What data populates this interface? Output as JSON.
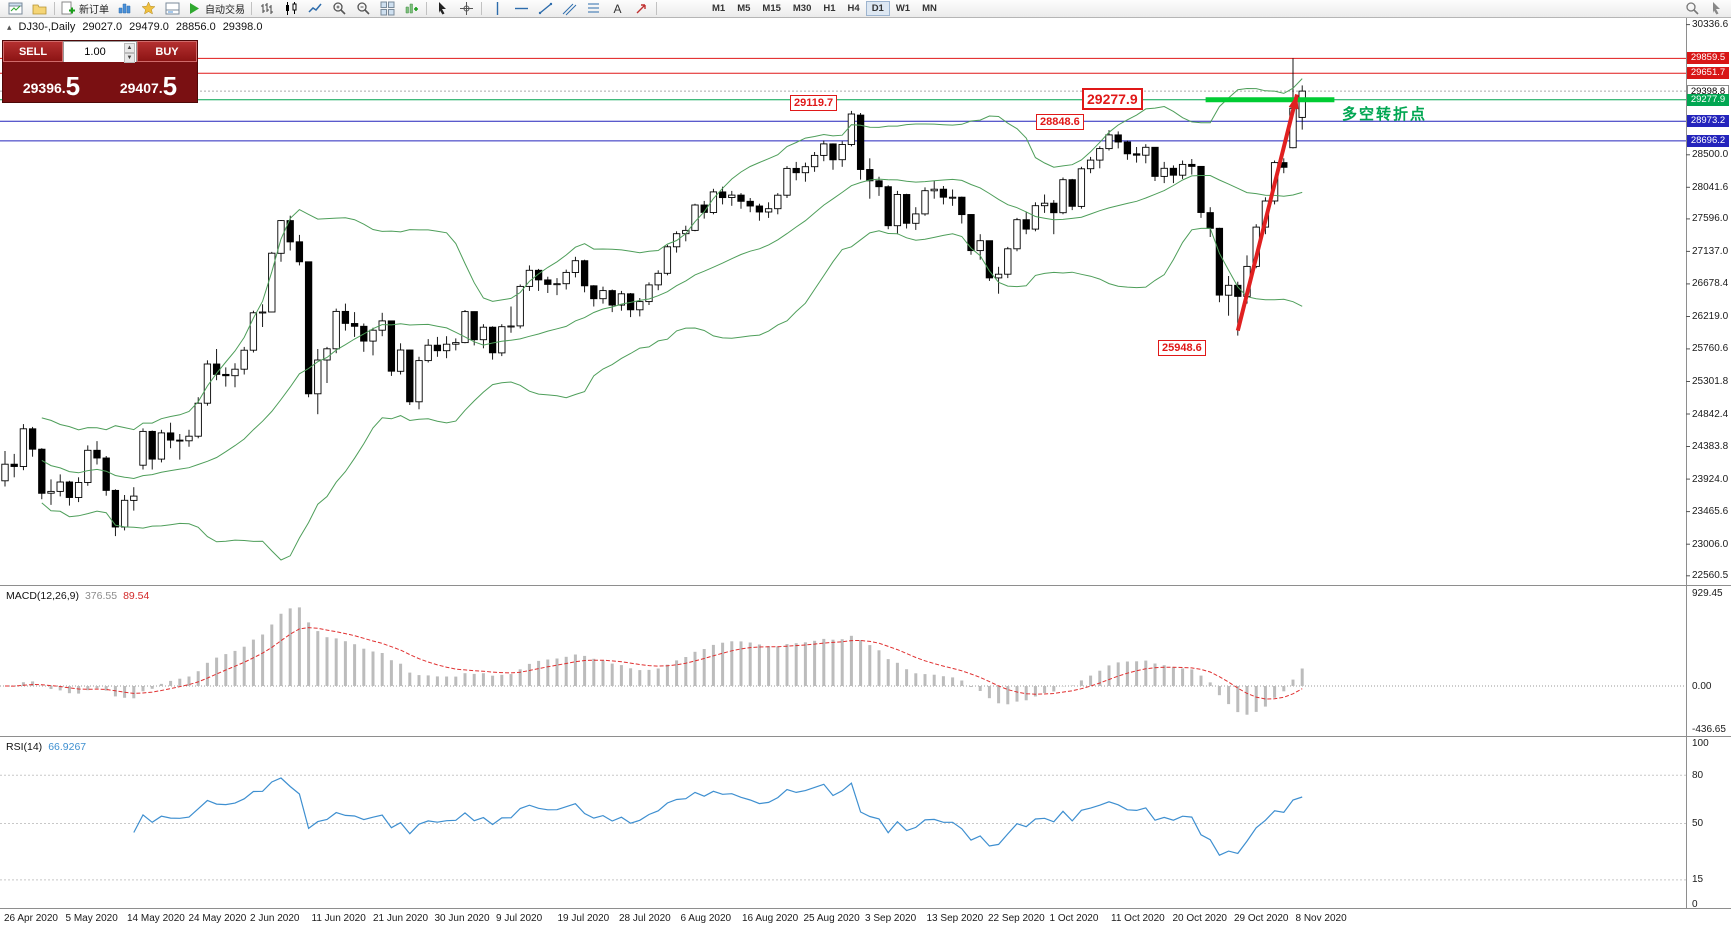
{
  "toolbar": {
    "new_order": "新订单",
    "autotrading": "自动交易",
    "timeframes": [
      "M1",
      "M5",
      "M15",
      "M30",
      "H1",
      "H4",
      "D1",
      "W1",
      "MN"
    ],
    "active_timeframe": "D1"
  },
  "icons": {
    "window-icon": "svg",
    "profiles-icon": "folder",
    "new-order-icon": "page-plus",
    "marketwatch-icon": "bars",
    "navigator-icon": "star",
    "terminal-icon": "panel",
    "autotrading-icon": "play-triangle",
    "bars-chart-icon": "ohlc-bars",
    "candles-chart-icon": "candles",
    "line-chart-icon": "zigzag",
    "zoom-in-icon": "magnifier-plus",
    "zoom-out-icon": "magnifier-minus",
    "tile-windows-icon": "grid",
    "indicators-icon": "chart-plus",
    "cursor-icon": "pointer-arrow",
    "crosshair-icon": "cross-circle",
    "vline-icon": "vertical-line",
    "hline-icon": "horizontal-line",
    "trendline-icon": "diagonal-line",
    "channel-icon": "parallel-lines",
    "fibonacci-icon": "stacked-lines",
    "text-icon": "A",
    "arrows-icon": "red-arrow",
    "window-zoom-icon": "magnifier",
    "window-pointer-icon": "pointer"
  },
  "chart_header": {
    "symbol": "DJ30-,Daily",
    "open": "29027.0",
    "high": "29479.0",
    "low": "28856.0",
    "close": "29398.0"
  },
  "trade_panel": {
    "sell_label": "SELL",
    "buy_label": "BUY",
    "volume": "1.00",
    "sell_price_int": "29396.",
    "sell_price_frac": "5",
    "buy_price_int": "29407.",
    "buy_price_frac": "5"
  },
  "annotations": {
    "high1": "29119.7",
    "high2": "28848.6",
    "level_label": "29277.9",
    "low_label": "25948.6",
    "note": "多空转折点"
  },
  "axis_badges": [
    {
      "value": 29859.5,
      "text": "29859.5",
      "bg": "#d81616"
    },
    {
      "value": 29651.7,
      "text": "29651.7",
      "bg": "#d81616"
    },
    {
      "value": 29398.8,
      "text": "29398.8",
      "plain": true
    },
    {
      "value": 29277.9,
      "text": "29277.9",
      "bg": "#00a651"
    },
    {
      "value": 28973.2,
      "text": "28973.2",
      "bg": "#2424bc"
    },
    {
      "value": 28696.2,
      "text": "28696.2",
      "bg": "#2424bc"
    }
  ],
  "price_ticks": [
    "30336.6",
    "28500.0",
    "28041.6",
    "27596.0",
    "27137.0",
    "26678.4",
    "26219.0",
    "25760.6",
    "25301.8",
    "24842.4",
    "24383.8",
    "23924.0",
    "23465.6",
    "23006.0",
    "22560.5"
  ],
  "macd_panel": {
    "name": "MACD(12,26,9)",
    "value": "376.55",
    "signal": "89.54",
    "axis": [
      "929.45",
      "0.00",
      "-436.65"
    ]
  },
  "rsi_panel": {
    "name": "RSI(14)",
    "value": "66.9267",
    "axis": [
      "100",
      "80",
      "50",
      "15",
      "0"
    ],
    "levels": [
      80,
      50,
      15
    ]
  },
  "time_axis": [
    "26 Apr 2020",
    "5 May 2020",
    "14 May 2020",
    "24 May 2020",
    "2 Jun 2020",
    "11 Jun 2020",
    "21 Jun 2020",
    "30 Jun 2020",
    "9 Jul 2020",
    "19 Jul 2020",
    "28 Jul 2020",
    "6 Aug 2020",
    "16 Aug 2020",
    "25 Aug 2020",
    "3 Sep 2020",
    "13 Sep 2020",
    "22 Sep 2020",
    "1 Oct 2020",
    "11 Oct 2020",
    "20 Oct 2020",
    "29 Oct 2020",
    "8 Nov 2020"
  ],
  "colors": {
    "hline_red": "#e01818",
    "hline_blue": "#2424bc",
    "hline_green": "#00a651",
    "segment_green": "#00cc33",
    "arrow_red": "#e02020",
    "bollinger": "#4e9e5a",
    "candle_up": "#ffffff",
    "candle_down": "#000000",
    "macd_bar": "#bcbcbc",
    "macd_signal": "#e03030",
    "rsi_line": "#3e8fd0",
    "bid_line": "#aaaaaa"
  },
  "chart_data": {
    "type": "candlestick",
    "symbol": "DJ30",
    "timeframe": "Daily",
    "y_range": [
      22430,
      30430
    ],
    "macd_range": [
      -500,
      980
    ],
    "hlines": [
      {
        "value": 29859.5,
        "color": "#e01818",
        "width": 1
      },
      {
        "value": 29651.7,
        "color": "#e01818",
        "width": 1
      },
      {
        "value": 29277.9,
        "color": "#00a651",
        "width": 1
      },
      {
        "value": 28973.2,
        "color": "#2424bc",
        "width": 1
      },
      {
        "value": 28696.2,
        "color": "#2424bc",
        "width": 1
      }
    ],
    "bid_line": 29398.8,
    "thick_segment": {
      "value": 29277.9,
      "from_index": 130.5,
      "to_index": 144.5,
      "color": "#00cc33"
    },
    "trend_arrow": {
      "from_index": 134,
      "from_value": 26020,
      "to_index": 140,
      "to_value": 29350,
      "color": "#e02020"
    },
    "indicators": {
      "bollinger": {
        "period": 20,
        "deviation": 2
      },
      "macd": {
        "fast": 12,
        "slow": 26,
        "signal": 9
      },
      "rsi": {
        "period": 14
      }
    },
    "candles": [
      [
        23900,
        24320,
        23820,
        24134
      ],
      [
        24134,
        24280,
        23950,
        24102
      ],
      [
        24102,
        24700,
        24050,
        24634
      ],
      [
        24634,
        24660,
        24240,
        24346
      ],
      [
        24346,
        24360,
        23640,
        23724
      ],
      [
        23724,
        23920,
        23560,
        23750
      ],
      [
        23750,
        23990,
        23680,
        23883
      ],
      [
        23883,
        23900,
        23550,
        23665
      ],
      [
        23665,
        23950,
        23600,
        23876
      ],
      [
        23876,
        24400,
        23830,
        24331
      ],
      [
        24331,
        24460,
        24130,
        24222
      ],
      [
        24222,
        24250,
        23690,
        23765
      ],
      [
        23765,
        23780,
        23120,
        23248
      ],
      [
        23248,
        23700,
        23200,
        23625
      ],
      [
        23625,
        23810,
        23480,
        23685
      ],
      [
        24120,
        24640,
        24060,
        24597
      ],
      [
        24597,
        24610,
        24060,
        24206
      ],
      [
        24206,
        24620,
        24160,
        24576
      ],
      [
        24576,
        24720,
        24360,
        24474
      ],
      [
        24474,
        24560,
        24200,
        24465
      ],
      [
        24465,
        24620,
        24380,
        24530
      ],
      [
        24530,
        25080,
        24500,
        24995
      ],
      [
        24995,
        25600,
        24960,
        25548
      ],
      [
        25548,
        25760,
        25320,
        25401
      ],
      [
        25401,
        25500,
        25230,
        25383
      ],
      [
        25383,
        25560,
        25220,
        25475
      ],
      [
        25475,
        25790,
        25400,
        25743
      ],
      [
        25743,
        26300,
        25710,
        26270
      ],
      [
        26270,
        26390,
        26070,
        26282
      ],
      [
        26282,
        27130,
        26280,
        27111
      ],
      [
        27111,
        27580,
        26990,
        27572
      ],
      [
        27572,
        27640,
        27150,
        27272
      ],
      [
        27272,
        27370,
        26940,
        26990
      ],
      [
        26990,
        26990,
        25080,
        25128
      ],
      [
        25128,
        25760,
        24840,
        25605
      ],
      [
        25605,
        25790,
        25280,
        25763
      ],
      [
        25763,
        26330,
        25700,
        26290
      ],
      [
        26290,
        26400,
        26020,
        26120
      ],
      [
        26120,
        26280,
        25930,
        26080
      ],
      [
        26080,
        26120,
        25720,
        25871
      ],
      [
        25871,
        26060,
        25670,
        26025
      ],
      [
        26025,
        26270,
        25940,
        26156
      ],
      [
        26156,
        26160,
        25380,
        25446
      ],
      [
        25446,
        25840,
        25400,
        25746
      ],
      [
        25746,
        25750,
        24970,
        25015
      ],
      [
        25015,
        25650,
        24910,
        25596
      ],
      [
        25596,
        25900,
        25570,
        25813
      ],
      [
        25813,
        25930,
        25650,
        25735
      ],
      [
        25735,
        25940,
        25630,
        25827
      ],
      [
        25827,
        25910,
        25740,
        25850
      ],
      [
        25850,
        26310,
        25840,
        26287
      ],
      [
        26287,
        26290,
        25810,
        25890
      ],
      [
        25890,
        26110,
        25770,
        26067
      ],
      [
        26067,
        26080,
        25610,
        25706
      ],
      [
        25706,
        26110,
        25660,
        26075
      ],
      [
        26075,
        26360,
        25990,
        26085
      ],
      [
        26085,
        26670,
        26050,
        26643
      ],
      [
        26643,
        26940,
        26580,
        26870
      ],
      [
        26870,
        26890,
        26580,
        26735
      ],
      [
        26735,
        26780,
        26550,
        26672
      ],
      [
        26672,
        26760,
        26520,
        26681
      ],
      [
        26681,
        26880,
        26600,
        26840
      ],
      [
        26840,
        27060,
        26770,
        27006
      ],
      [
        27006,
        27020,
        26560,
        26652
      ],
      [
        26652,
        26660,
        26360,
        26470
      ],
      [
        26470,
        26640,
        26400,
        26584
      ],
      [
        26584,
        26600,
        26280,
        26379
      ],
      [
        26379,
        26580,
        26300,
        26539
      ],
      [
        26539,
        26550,
        26210,
        26313
      ],
      [
        26313,
        26480,
        26220,
        26428
      ],
      [
        26428,
        26700,
        26380,
        26664
      ],
      [
        26664,
        26870,
        26590,
        26828
      ],
      [
        26828,
        27230,
        26800,
        27202
      ],
      [
        27202,
        27420,
        27120,
        27387
      ],
      [
        27387,
        27500,
        27280,
        27433
      ],
      [
        27433,
        27810,
        27420,
        27791
      ],
      [
        27791,
        27850,
        27600,
        27686
      ],
      [
        27686,
        28020,
        27660,
        27977
      ],
      [
        27977,
        28050,
        27800,
        27897
      ],
      [
        27897,
        27990,
        27780,
        27931
      ],
      [
        27931,
        27960,
        27740,
        27844
      ],
      [
        27844,
        27890,
        27690,
        27778
      ],
      [
        27778,
        27810,
        27570,
        27693
      ],
      [
        27693,
        27830,
        27610,
        27740
      ],
      [
        27740,
        27960,
        27660,
        27930
      ],
      [
        27930,
        28340,
        27890,
        28308
      ],
      [
        28308,
        28400,
        28140,
        28248
      ],
      [
        28248,
        28390,
        28120,
        28332
      ],
      [
        28332,
        28540,
        28260,
        28492
      ],
      [
        28492,
        28700,
        28410,
        28654
      ],
      [
        28654,
        28660,
        28290,
        28430
      ],
      [
        28430,
        28690,
        28330,
        28645
      ],
      [
        28645,
        29119.7,
        28620,
        29075
      ],
      [
        29060,
        29090,
        28150,
        28293
      ],
      [
        28293,
        28450,
        27880,
        28133
      ],
      [
        28133,
        28190,
        27920,
        28050
      ],
      [
        28050,
        28070,
        27450,
        27500
      ],
      [
        27500,
        27990,
        27380,
        27940
      ],
      [
        27940,
        27950,
        27460,
        27534
      ],
      [
        27534,
        27760,
        27440,
        27666
      ],
      [
        27666,
        28040,
        27640,
        27993
      ],
      [
        27993,
        28130,
        27880,
        28015
      ],
      [
        28015,
        28060,
        27800,
        27902
      ],
      [
        27902,
        28010,
        27780,
        27902
      ],
      [
        27902,
        27910,
        27530,
        27657
      ],
      [
        27657,
        27660,
        27090,
        27148
      ],
      [
        27148,
        27380,
        27020,
        27288
      ],
      [
        27288,
        27290,
        26720,
        26763
      ],
      [
        26763,
        26920,
        26540,
        26815
      ],
      [
        26815,
        27200,
        26760,
        27174
      ],
      [
        27174,
        27610,
        27140,
        27584
      ],
      [
        27584,
        27700,
        27380,
        27452
      ],
      [
        27452,
        27830,
        27420,
        27782
      ],
      [
        27782,
        27940,
        27680,
        27817
      ],
      [
        27817,
        27860,
        27380,
        27683
      ],
      [
        27683,
        28180,
        27660,
        28149
      ],
      [
        28149,
        28160,
        27720,
        27773
      ],
      [
        27773,
        28330,
        27740,
        28303
      ],
      [
        28303,
        28470,
        28240,
        28425
      ],
      [
        28425,
        28620,
        28310,
        28587
      ],
      [
        28587,
        28848.6,
        28560,
        28780
      ],
      [
        28780,
        28830,
        28590,
        28680
      ],
      [
        28680,
        28700,
        28430,
        28514
      ],
      [
        28514,
        28610,
        28390,
        28494
      ],
      [
        28494,
        28650,
        28380,
        28606
      ],
      [
        28606,
        28610,
        28130,
        28195
      ],
      [
        28195,
        28400,
        28100,
        28309
      ],
      [
        28309,
        28350,
        28100,
        28211
      ],
      [
        28211,
        28420,
        28160,
        28364
      ],
      [
        28364,
        28440,
        28220,
        28336
      ],
      [
        28336,
        28340,
        27610,
        27685
      ],
      [
        27685,
        27760,
        27340,
        27463
      ],
      [
        27463,
        27470,
        26420,
        26520
      ],
      [
        26520,
        26790,
        26230,
        26659
      ],
      [
        26659,
        26710,
        25948.6,
        26502
      ],
      [
        26502,
        27080,
        26400,
        26925
      ],
      [
        26925,
        27520,
        26900,
        27480
      ],
      [
        27480,
        27900,
        27380,
        27848
      ],
      [
        27848,
        28420,
        27800,
        28390
      ],
      [
        28390,
        28450,
        28240,
        28323
      ],
      [
        28600,
        29859.5,
        28590,
        29158
      ],
      [
        29027,
        29479,
        28856,
        29398
      ]
    ]
  }
}
